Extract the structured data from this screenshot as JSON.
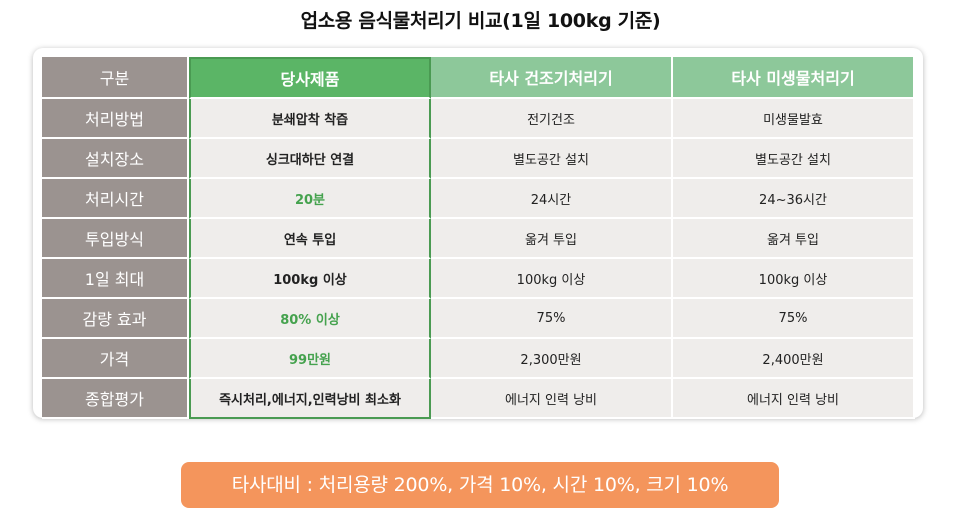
{
  "title": "업소용 음식물처리기 비교(1일 100kg 기준)",
  "colors": {
    "header_gray": "#9b9390",
    "ours_header": "#5bb566",
    "other_header": "#8dc89a",
    "cell_bg": "#efedeb",
    "highlight_text": "#45a24e",
    "banner_bg": "#f4955c"
  },
  "table": {
    "headers": [
      "구분",
      "당사제품",
      "타사 건조기처리기",
      "타사 미생물처리기"
    ],
    "rows": [
      {
        "label": "처리방법",
        "ours": "분쇄압착 착즙",
        "other1": "전기건조",
        "other2": "미생물발효",
        "highlight": false
      },
      {
        "label": "설치장소",
        "ours": "싱크대하단 연결",
        "other1": "별도공간 설치",
        "other2": "별도공간 설치",
        "highlight": false
      },
      {
        "label": "처리시간",
        "ours": "20분",
        "other1": "24시간",
        "other2": "24~36시간",
        "highlight": true
      },
      {
        "label": "투입방식",
        "ours": "연속 투입",
        "other1": "옮겨 투입",
        "other2": "옮겨 투입",
        "highlight": false
      },
      {
        "label": "1일 최대",
        "ours": "100kg 이상",
        "other1": "100kg 이상",
        "other2": "100kg 이상",
        "highlight": false
      },
      {
        "label": "감량 효과",
        "ours": "80% 이상",
        "other1": "75%",
        "other2": "75%",
        "highlight": true
      },
      {
        "label": "가격",
        "ours": "99만원",
        "other1": "2,300만원",
        "other2": "2,400만원",
        "highlight": true
      },
      {
        "label": "종합평가",
        "ours": "즉시처리,에너지,인력낭비 최소화",
        "other1": "에너지 인력 낭비",
        "other2": "에너지 인력 낭비",
        "highlight": false
      }
    ]
  },
  "banner": "타사대비 : 처리용량 200%, 가격 10%, 시간 10%, 크기 10%"
}
